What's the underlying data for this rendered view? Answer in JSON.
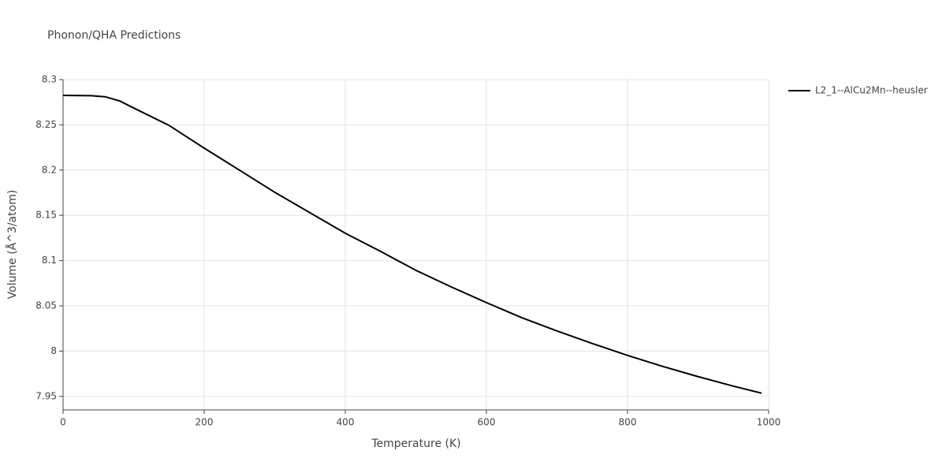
{
  "chart_data": {
    "type": "line",
    "title": "Phonon/QHA Predictions",
    "x_label": "Temperature (K)",
    "y_label": "Volume (Å^3/atom)",
    "x": [
      0,
      40,
      60,
      80,
      100,
      150,
      200,
      250,
      300,
      350,
      400,
      450,
      500,
      550,
      600,
      650,
      700,
      750,
      800,
      850,
      900,
      950,
      990
    ],
    "series": [
      {
        "name": "L2_1--AlCu2Mn--heusler",
        "color": "#000000",
        "values": [
          8.2826,
          8.2823,
          8.281,
          8.2765,
          8.2687,
          8.2495,
          8.2243,
          8.2,
          8.1755,
          8.1529,
          8.1302,
          8.1102,
          8.0893,
          8.071,
          8.0536,
          8.037,
          8.0223,
          8.0084,
          7.9953,
          7.9831,
          7.9718,
          7.9613,
          7.9535
        ]
      }
    ],
    "xlim": [
      0,
      1000
    ],
    "xticks": [
      0,
      200,
      400,
      600,
      800,
      1000
    ],
    "ylim": [
      7.935,
      8.3
    ],
    "yticks": [
      7.95,
      8,
      8.05,
      8.1,
      8.15,
      8.2,
      8.25,
      8.3
    ],
    "grid": true,
    "legend": "right"
  }
}
